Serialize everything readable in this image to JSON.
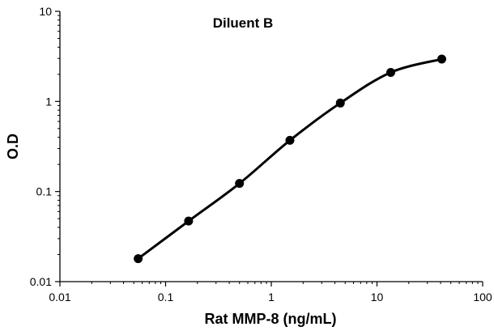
{
  "chart_data": {
    "type": "line",
    "title": "Diluent B",
    "xlabel": "Rat MMP-8 (ng/mL)",
    "ylabel": "O.D",
    "xscale": "log",
    "yscale": "log",
    "xlim": [
      0.01,
      100
    ],
    "ylim": [
      0.01,
      10
    ],
    "x_ticks": [
      "0.01",
      "0.1",
      "1",
      "10",
      "100"
    ],
    "y_ticks": [
      "0.01",
      "0.1",
      "1",
      "10"
    ],
    "grid": false,
    "legend": "none",
    "line_color": "#000000",
    "marker": "filled-circle",
    "series": [
      {
        "x": [
          0.055,
          0.165,
          0.5,
          1.5,
          4.5,
          13.5,
          41
        ],
        "y": [
          0.018,
          0.047,
          0.123,
          0.37,
          0.96,
          2.1,
          2.95
        ]
      }
    ]
  }
}
